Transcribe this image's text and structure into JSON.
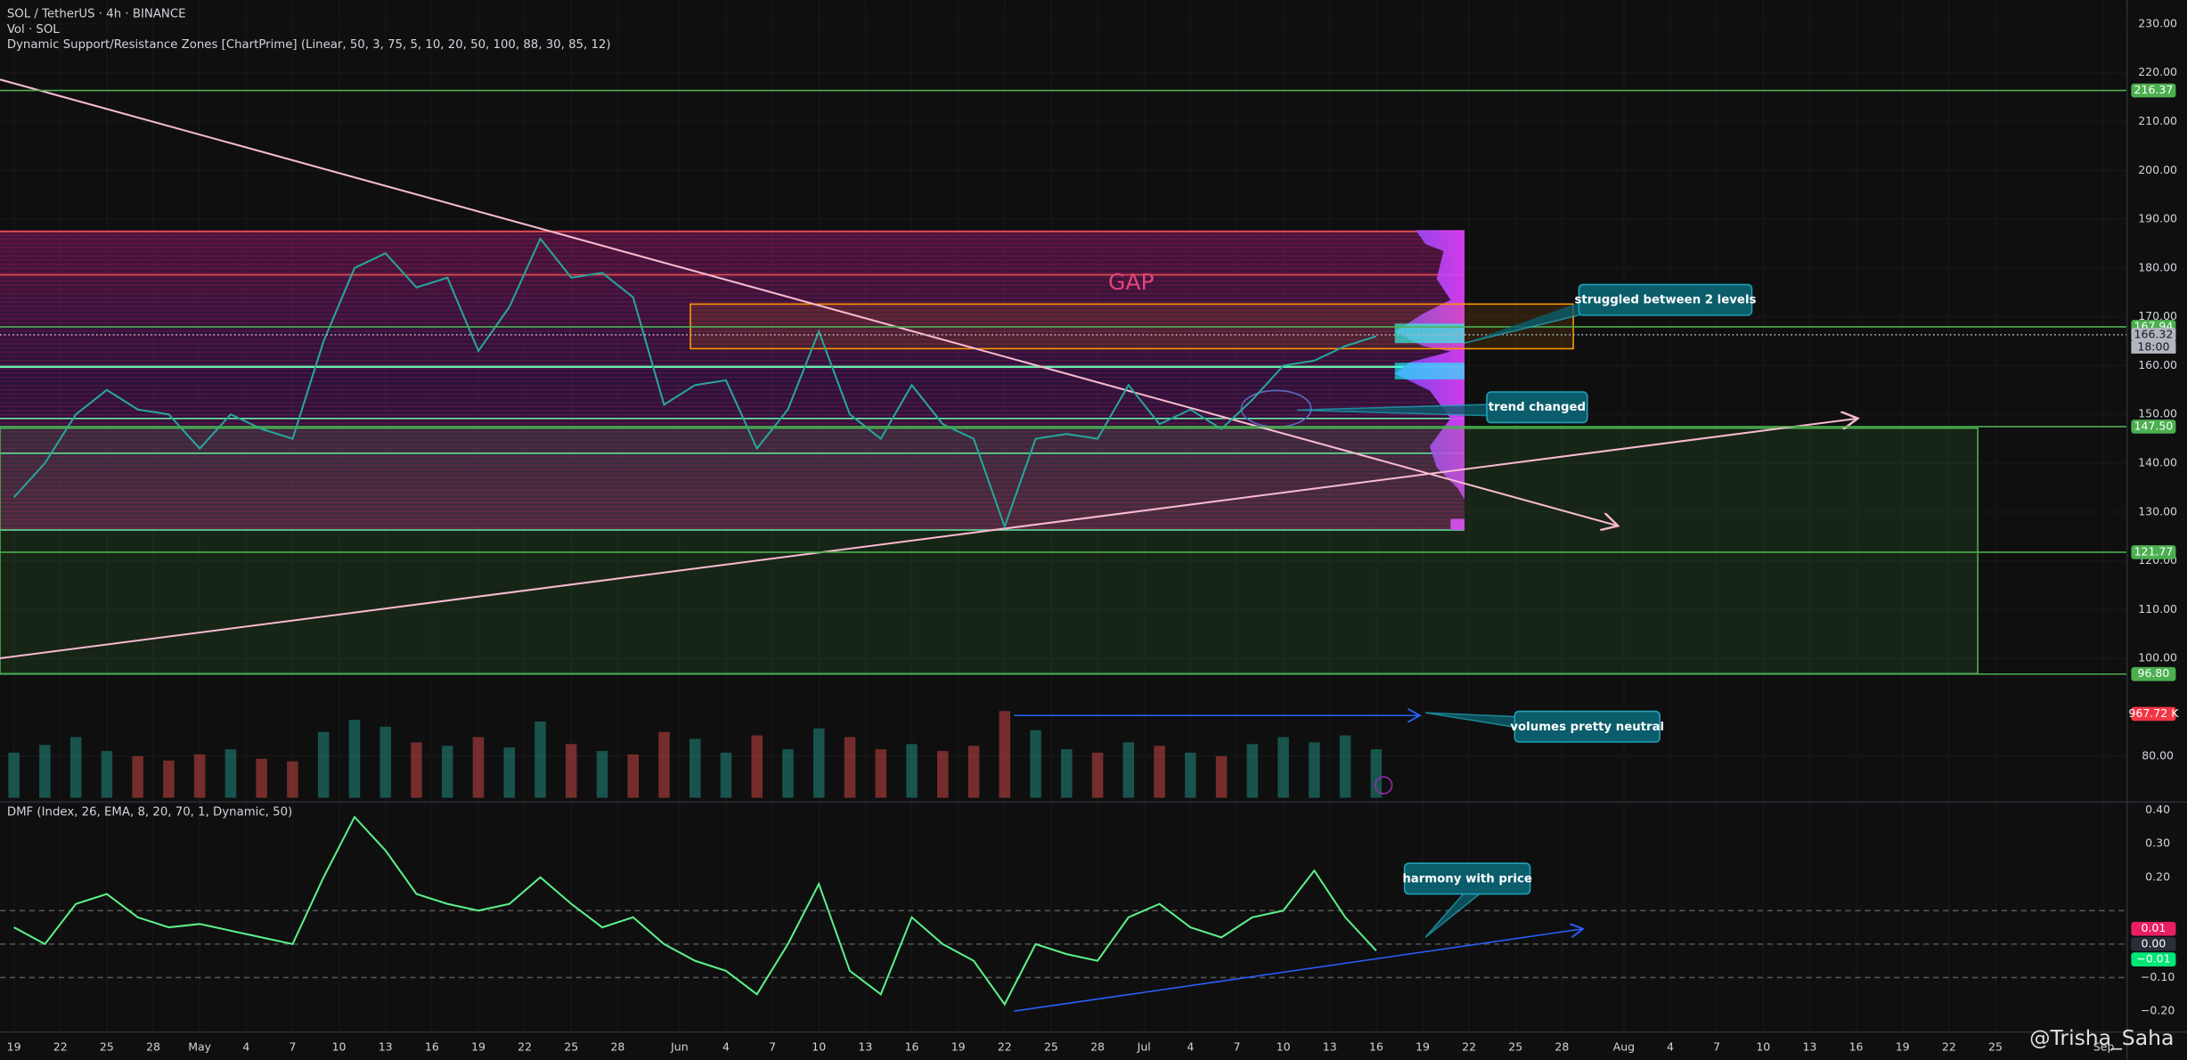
{
  "header": {
    "symbol": "SOL / TetherUS · 4h · BINANCE",
    "volume": "Vol · SOL",
    "indicator": "Dynamic Support/Resistance Zones [ChartPrime] (Linear, 50, 3, 75, 5, 10, 20, 50, 100, 88, 30, 85, 12)"
  },
  "chart_data": [
    {
      "type": "line",
      "x": [
        0,
        2,
        4,
        6,
        8,
        10,
        12,
        14,
        16,
        18,
        20,
        22,
        24,
        26,
        28,
        30,
        32,
        34,
        36,
        38,
        40,
        42,
        44,
        46,
        48,
        50,
        52,
        54,
        56,
        58,
        60,
        62,
        64,
        66,
        68,
        70,
        72,
        74,
        76,
        78,
        80,
        82,
        84,
        86,
        88
      ],
      "series": [
        {
          "color": "#26a69a",
          "values": [
            133,
            140,
            150,
            155,
            151,
            150,
            143,
            150,
            147,
            145,
            165,
            180,
            183,
            176,
            178,
            163,
            172,
            186,
            178,
            179,
            174,
            152,
            156,
            157,
            143,
            151,
            167,
            150,
            145,
            156,
            148,
            145,
            127,
            145,
            146,
            145,
            156,
            148,
            151,
            147,
            153,
            160,
            161,
            164,
            166
          ]
        }
      ],
      "xlim": [
        -0.9,
        136.5
      ],
      "ylim": [
        70.6,
        234.9
      ],
      "grid": true,
      "xticks": [
        {
          "value": 0,
          "label": "19"
        },
        {
          "value": 3,
          "label": "22"
        },
        {
          "value": 6,
          "label": "25"
        },
        {
          "value": 9,
          "label": "28"
        },
        {
          "value": 12,
          "label": "May"
        },
        {
          "value": 15,
          "label": "4"
        },
        {
          "value": 18,
          "label": "7"
        },
        {
          "value": 21,
          "label": "10"
        },
        {
          "value": 24,
          "label": "13"
        },
        {
          "value": 27,
          "label": "16"
        },
        {
          "value": 30,
          "label": "19"
        },
        {
          "value": 33,
          "label": "22"
        },
        {
          "value": 36,
          "label": "25"
        },
        {
          "value": 39,
          "label": "28"
        },
        {
          "value": 43,
          "label": "Jun"
        },
        {
          "value": 46,
          "label": "4"
        },
        {
          "value": 49,
          "label": "7"
        },
        {
          "value": 52,
          "label": "10"
        },
        {
          "value": 55,
          "label": "13"
        },
        {
          "value": 58,
          "label": "16"
        },
        {
          "value": 61,
          "label": "19"
        },
        {
          "value": 64,
          "label": "22"
        },
        {
          "value": 67,
          "label": "25"
        },
        {
          "value": 70,
          "label": "28"
        },
        {
          "value": 73,
          "label": "Jul"
        },
        {
          "value": 76,
          "label": "4"
        },
        {
          "value": 79,
          "label": "7"
        },
        {
          "value": 82,
          "label": "10"
        },
        {
          "value": 85,
          "label": "13"
        },
        {
          "value": 88,
          "label": "16"
        },
        {
          "value": 91,
          "label": "19"
        },
        {
          "value": 94,
          "label": "22"
        },
        {
          "value": 97,
          "label": "25"
        },
        {
          "value": 100,
          "label": "28"
        },
        {
          "value": 104,
          "label": "Aug"
        },
        {
          "value": 107,
          "label": "4"
        },
        {
          "value": 110,
          "label": "7"
        },
        {
          "value": 113,
          "label": "10"
        },
        {
          "value": 116,
          "label": "13"
        },
        {
          "value": 119,
          "label": "16"
        },
        {
          "value": 122,
          "label": "19"
        },
        {
          "value": 125,
          "label": "22"
        },
        {
          "value": 128,
          "label": "25"
        },
        {
          "value": 135,
          "label": "Sep"
        }
      ],
      "yticks": [
        {
          "value": 80,
          "label": "80.00"
        },
        {
          "value": 100,
          "label": "100.00"
        },
        {
          "value": 110,
          "label": "110.00"
        },
        {
          "value": 120,
          "label": "120.00"
        },
        {
          "value": 130,
          "label": "130.00"
        },
        {
          "value": 140,
          "label": "140.00"
        },
        {
          "value": 150,
          "label": "150.00"
        },
        {
          "value": 160,
          "label": "160.00"
        },
        {
          "value": 170,
          "label": "170.00"
        },
        {
          "value": 180,
          "label": "180.00"
        },
        {
          "value": 190,
          "label": "190.00"
        },
        {
          "value": 200,
          "label": "200.00"
        },
        {
          "value": 210,
          "label": "210.00"
        },
        {
          "value": 220,
          "label": "220.00"
        },
        {
          "value": 230,
          "label": "230.00"
        }
      ],
      "axis_labels": [
        {
          "value": 216.37,
          "label": "216.37",
          "color": "#4caf50"
        },
        {
          "value": 167.94,
          "label": "167.94",
          "color": "#4caf50"
        },
        {
          "value": 166.32,
          "label": "166.32",
          "color": "#b2b5be"
        },
        {
          "value": 147.5,
          "label": "147.50",
          "color": "#4caf50"
        },
        {
          "value": 121.77,
          "label": "121.77",
          "color": "#4caf50"
        },
        {
          "value": 96.8,
          "label": "96.80",
          "color": "#4caf50"
        }
      ],
      "countdown": "18:00"
    },
    {
      "type": "bar",
      "x": [
        0,
        2,
        4,
        6,
        8,
        10,
        12,
        14,
        16,
        18,
        20,
        22,
        24,
        26,
        28,
        30,
        32,
        34,
        36,
        38,
        40,
        42,
        44,
        46,
        48,
        50,
        52,
        54,
        56,
        58,
        60,
        62,
        64,
        66,
        68,
        70,
        72,
        74,
        76,
        78,
        80,
        82,
        84,
        86,
        88
      ],
      "values": [
        520,
        610,
        700,
        540,
        480,
        430,
        500,
        560,
        450,
        420,
        760,
        900,
        820,
        640,
        600,
        700,
        580,
        880,
        620,
        540,
        500,
        760,
        680,
        520,
        720,
        560,
        800,
        700,
        560,
        620,
        540,
        600,
        1000,
        780,
        560,
        520,
        640,
        600,
        520,
        480,
        620,
        700,
        640,
        720,
        560
      ],
      "colors": [
        "#26a69a",
        "#ef5350"
      ],
      "ylim": [
        0,
        1400
      ],
      "axis_labels": [
        {
          "value": 967.72,
          "label": "967.72 K",
          "color": "#f23645"
        }
      ]
    },
    {
      "type": "line",
      "title": "DMF (Index, 26, EMA, 8, 20, 70, 1, Dynamic, 50)",
      "x": [
        0,
        2,
        4,
        6,
        8,
        10,
        12,
        14,
        16,
        18,
        20,
        22,
        24,
        26,
        28,
        30,
        32,
        34,
        36,
        38,
        40,
        42,
        44,
        46,
        48,
        50,
        52,
        54,
        56,
        58,
        60,
        62,
        64,
        66,
        68,
        70,
        72,
        74,
        76,
        78,
        80,
        82,
        84,
        86,
        88
      ],
      "series": [
        {
          "color": "#5cf08a",
          "values": [
            0.05,
            0.0,
            0.12,
            0.15,
            0.08,
            0.05,
            0.06,
            0.04,
            0.02,
            0.0,
            0.2,
            0.38,
            0.28,
            0.15,
            0.12,
            0.1,
            0.12,
            0.2,
            0.12,
            0.05,
            0.08,
            0.0,
            -0.05,
            -0.08,
            -0.15,
            0.0,
            0.18,
            -0.08,
            -0.15,
            0.08,
            0.0,
            -0.05,
            -0.18,
            0.0,
            -0.03,
            -0.05,
            0.08,
            0.12,
            0.05,
            0.02,
            0.08,
            0.1,
            0.22,
            0.08,
            -0.02
          ]
        }
      ],
      "ylim": [
        -0.263,
        0.425
      ],
      "yticks": [
        {
          "value": 0.4,
          "label": "0.40"
        },
        {
          "value": 0.3,
          "label": "0.30"
        },
        {
          "value": 0.2,
          "label": "0.20"
        },
        {
          "value": -0.1,
          "label": "−0.10"
        },
        {
          "value": -0.2,
          "label": "−0.20"
        }
      ],
      "levels": [
        0.1,
        0,
        -0.1
      ],
      "axis_labels": [
        {
          "value": 0.01,
          "label": "0.01",
          "color": "#e91e63"
        },
        {
          "value": 0,
          "label": "0.00",
          "color": "#2a2e39"
        },
        {
          "value": -0.01,
          "label": "−0.01",
          "color": "#00e676"
        }
      ]
    }
  ],
  "annotations": {
    "gap": "GAP",
    "struggled": "struggled between 2 levels",
    "trend": "trend changed",
    "volumes": "volumes pretty neutral",
    "harmony": "harmony with price"
  },
  "watermark": "@Trisha_Saha"
}
